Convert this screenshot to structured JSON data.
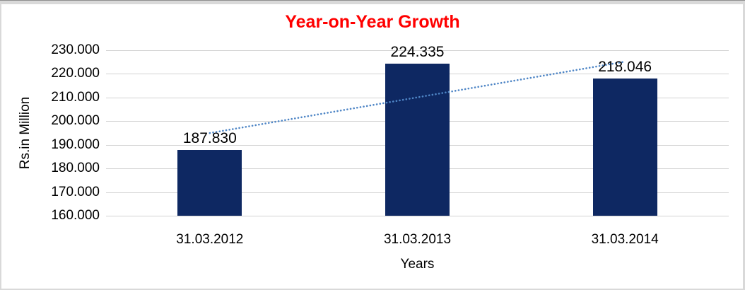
{
  "chart_data": {
    "type": "bar",
    "title": "Year-on-Year Growth",
    "title_color": "#ff0000",
    "categories": [
      "31.03.2012",
      "31.03.2013",
      "31.03.2014"
    ],
    "values": [
      187.83,
      224.335,
      218.046
    ],
    "value_labels": [
      "187.830",
      "224.335",
      "218.046"
    ],
    "xlabel": "Years",
    "ylabel": "Rs.in Million",
    "ylim": [
      160,
      230
    ],
    "y_tick_step": 10,
    "y_tick_labels": [
      "230.000",
      "220.000",
      "210.000",
      "200.000",
      "190.000",
      "180.000",
      "170.000",
      "160.000"
    ],
    "grid": true,
    "legend_position": "none",
    "bar_color": "#0e2862",
    "gridline_color": "#d3d3d3",
    "text_color": "#000000",
    "trendline": {
      "type": "linear",
      "style": "dotted",
      "color": "#4f86c6"
    }
  }
}
